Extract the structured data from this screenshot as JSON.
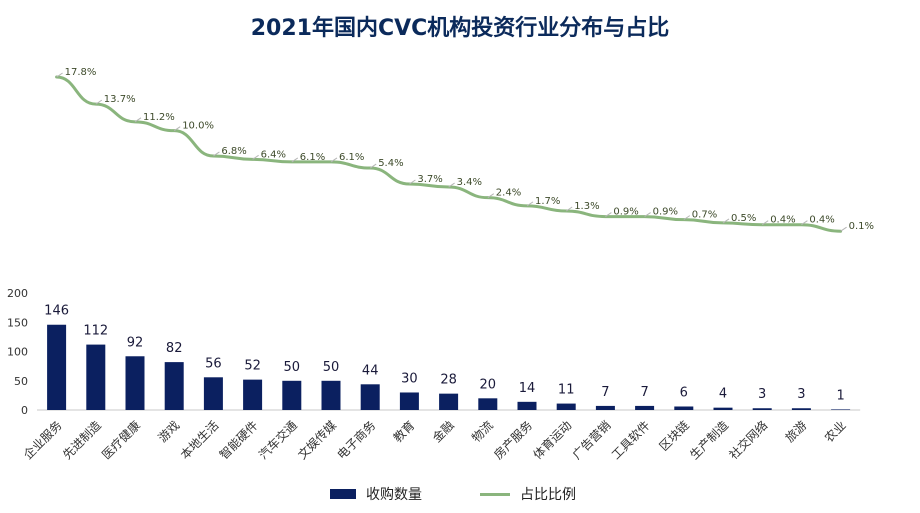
{
  "chart_data": {
    "type": "bar",
    "title": "2021年国内CVC机构投资行业分布与占比",
    "categories": [
      "企业服务",
      "先进制造",
      "医疗健康",
      "游戏",
      "本地生活",
      "智能硬件",
      "汽车交通",
      "文娱传媒",
      "电子商务",
      "教育",
      "金融",
      "物流",
      "房产服务",
      "体育运动",
      "广告营销",
      "工具软件",
      "区块链",
      "生产制造",
      "社交网络",
      "旅游",
      "农业"
    ],
    "series": [
      {
        "name": "收购数量",
        "type": "bar",
        "values": [
          146,
          112,
          92,
          82,
          56,
          52,
          50,
          50,
          44,
          30,
          28,
          20,
          14,
          11,
          7,
          7,
          6,
          4,
          3,
          3,
          1
        ]
      },
      {
        "name": "占比比例",
        "type": "line",
        "labels": [
          "17.8%",
          "13.7%",
          "11.2%",
          "10.0%",
          "6.8%",
          "6.4%",
          "6.1%",
          "6.1%",
          "5.4%",
          "3.7%",
          "3.4%",
          "2.4%",
          "1.7%",
          "1.3%",
          "0.9%",
          "0.9%",
          "0.7%",
          "0.5%",
          "0.4%",
          "0.4%",
          "0.1%"
        ]
      }
    ],
    "yticks": [
      0,
      50,
      100,
      150,
      200
    ],
    "ylim": [
      0,
      220
    ],
    "legend": "bottom",
    "colors": {
      "bar": "#0b2060",
      "line": "#8ab57d",
      "title": "#0b2a5b"
    }
  }
}
